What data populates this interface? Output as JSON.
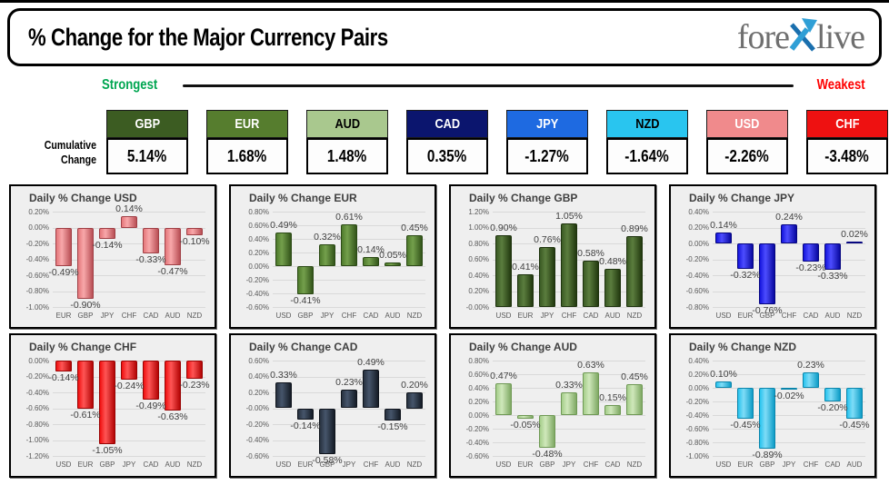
{
  "header": {
    "title": "% Change for the Major Currency Pairs",
    "logo": {
      "pre": "fore",
      "x_icon": "blue-arrow-x-icon",
      "post": "live"
    }
  },
  "scale": {
    "strongest_label": "Strongest",
    "weakest_label": "Weakest",
    "strongest_color": "#00a651",
    "weakest_color": "#fe0000"
  },
  "cumulative": {
    "label_line1": "Cumulative",
    "label_line2": "Change",
    "items": [
      {
        "code": "GBP",
        "value": "5.14%",
        "bg": "#3c5c22",
        "fg": "#ffffff"
      },
      {
        "code": "EUR",
        "value": "1.68%",
        "bg": "#567d2e",
        "fg": "#ffffff"
      },
      {
        "code": "AUD",
        "value": "1.48%",
        "bg": "#a9c88e",
        "fg": "#000000"
      },
      {
        "code": "CAD",
        "value": "0.35%",
        "bg": "#0b156e",
        "fg": "#ffffff"
      },
      {
        "code": "JPY",
        "value": "-1.27%",
        "bg": "#1e6ae1",
        "fg": "#ffffff"
      },
      {
        "code": "NZD",
        "value": "-1.64%",
        "bg": "#29c5ef",
        "fg": "#000000"
      },
      {
        "code": "USD",
        "value": "-2.26%",
        "bg": "#f08a8c",
        "fg": "#ffffff"
      },
      {
        "code": "CHF",
        "value": "-3.48%",
        "bg": "#ee1111",
        "fg": "#ffffff"
      }
    ]
  },
  "chart_data": [
    {
      "type": "bar",
      "title": "Daily % Change USD",
      "categories": [
        "EUR",
        "GBP",
        "JPY",
        "CHF",
        "CAD",
        "AUD",
        "NZD"
      ],
      "values": [
        -0.49,
        -0.9,
        -0.14,
        0.14,
        -0.33,
        -0.47,
        -0.1
      ],
      "ylim": [
        -1.0,
        0.2
      ],
      "tick_step": 0.2,
      "grid": true,
      "legend": "none",
      "bar_color": {
        "light": "#f8a8aa",
        "base": "#e4777b",
        "dark": "#b94f55",
        "border": "#a04046"
      }
    },
    {
      "type": "bar",
      "title": "Daily % Change EUR",
      "categories": [
        "USD",
        "GBP",
        "JPY",
        "CHF",
        "CAD",
        "AUD",
        "NZD"
      ],
      "values": [
        0.49,
        -0.41,
        0.32,
        0.61,
        0.14,
        0.05,
        0.45
      ],
      "ylim": [
        -0.6,
        0.8
      ],
      "tick_step": 0.2,
      "grid": true,
      "legend": "none",
      "bar_color": {
        "light": "#74a04c",
        "base": "#4e7a2c",
        "dark": "#33551a",
        "border": "#2c4a16"
      }
    },
    {
      "type": "bar",
      "title": "Daily % Change GBP",
      "categories": [
        "USD",
        "EUR",
        "JPY",
        "CHF",
        "CAD",
        "AUD",
        "NZD"
      ],
      "values": [
        0.9,
        0.41,
        0.76,
        1.05,
        0.58,
        0.48,
        0.89
      ],
      "ylim": [
        0.0,
        1.2
      ],
      "tick_step": 0.2,
      "grid": true,
      "legend": "none",
      "bar_color": {
        "light": "#5b7d3e",
        "base": "#3a5a24",
        "dark": "#22390f",
        "border": "#1e330e"
      }
    },
    {
      "type": "bar",
      "title": "Daily % Change JPY",
      "categories": [
        "USD",
        "EUR",
        "GBP",
        "CHF",
        "CAD",
        "AUD",
        "NZD"
      ],
      "values": [
        0.14,
        -0.32,
        -0.76,
        0.24,
        -0.23,
        -0.33,
        0.02
      ],
      "ylim": [
        -0.8,
        0.4
      ],
      "tick_step": 0.2,
      "grid": true,
      "legend": "none",
      "bar_color": {
        "light": "#4d4dff",
        "base": "#1414dc",
        "dark": "#0909a0",
        "border": "#070780"
      }
    },
    {
      "type": "bar",
      "title": "Daily % Change CHF",
      "categories": [
        "USD",
        "EUR",
        "GBP",
        "JPY",
        "CAD",
        "AUD",
        "NZD"
      ],
      "values": [
        -0.14,
        -0.61,
        -1.05,
        -0.24,
        -0.49,
        -0.63,
        -0.23
      ],
      "ylim": [
        -1.2,
        0.0
      ],
      "tick_step": 0.2,
      "grid": true,
      "legend": "none",
      "bar_color": {
        "light": "#ff5555",
        "base": "#ef0f0f",
        "dark": "#b30505",
        "border": "#990404"
      }
    },
    {
      "type": "bar",
      "title": "Daily % Change CAD",
      "categories": [
        "USD",
        "EUR",
        "GBP",
        "JPY",
        "CHF",
        "AUD",
        "NZD"
      ],
      "values": [
        0.33,
        -0.14,
        -0.58,
        0.23,
        0.49,
        -0.15,
        0.2
      ],
      "ylim": [
        -0.6,
        0.6
      ],
      "tick_step": 0.2,
      "grid": true,
      "legend": "none",
      "bar_color": {
        "light": "#46556b",
        "base": "#27313f",
        "dark": "#151c26",
        "border": "#0f141c"
      }
    },
    {
      "type": "bar",
      "title": "Daily % Change AUD",
      "categories": [
        "USD",
        "EUR",
        "GBP",
        "JPY",
        "CHF",
        "CAD",
        "NZD"
      ],
      "values": [
        0.47,
        -0.05,
        -0.48,
        0.33,
        0.63,
        0.15,
        0.45
      ],
      "ylim": [
        -0.6,
        0.8
      ],
      "tick_step": 0.2,
      "grid": true,
      "legend": "none",
      "bar_color": {
        "light": "#cfe8bb",
        "base": "#a5cd8a",
        "dark": "#7fa964",
        "border": "#6f9955"
      }
    },
    {
      "type": "bar",
      "title": "Daily % Change NZD",
      "categories": [
        "USD",
        "EUR",
        "GBP",
        "JPY",
        "CHF",
        "CAD",
        "AUD"
      ],
      "values": [
        0.1,
        -0.45,
        -0.89,
        -0.02,
        0.23,
        -0.2,
        -0.45
      ],
      "ylim": [
        -1.0,
        0.4
      ],
      "tick_step": 0.2,
      "grid": true,
      "legend": "none",
      "bar_color": {
        "light": "#7fdcf7",
        "base": "#27c3ee",
        "dark": "#0e9dc7",
        "border": "#0a85ab"
      }
    }
  ]
}
